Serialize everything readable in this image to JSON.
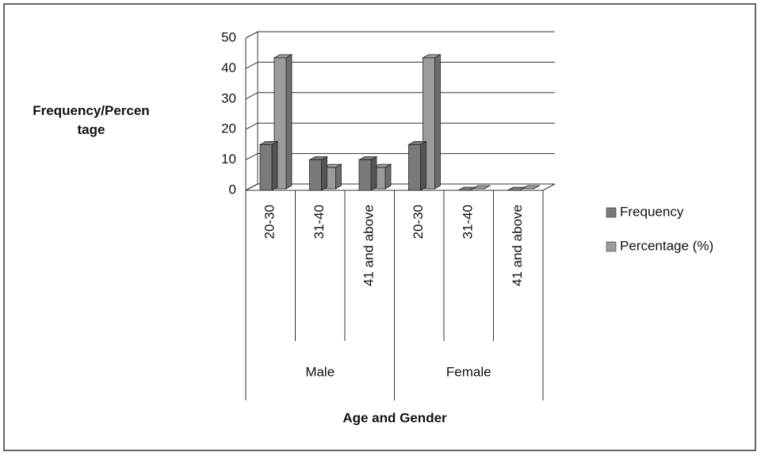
{
  "chart_data": {
    "type": "bar3d",
    "y_axis_label": "Frequency/Percentage",
    "x_axis_label": "Age and Gender",
    "categories": [
      "20-30",
      "31-40",
      "41 and above",
      "20-30",
      "31-40",
      "41 and above"
    ],
    "group_labels": [
      "Male",
      "Female"
    ],
    "series": [
      {
        "name": "Frequency",
        "color": "#7a7a7a",
        "values": [
          15,
          10,
          10,
          15,
          0,
          0
        ]
      },
      {
        "name": "Percentage (%)",
        "color": "#9c9c9c",
        "values": [
          43,
          7,
          7,
          43,
          0,
          0
        ]
      }
    ],
    "ylim": [
      0,
      50
    ],
    "yticks": [
      0,
      10,
      20,
      30,
      40,
      50
    ],
    "grid": true,
    "legend": "right"
  }
}
